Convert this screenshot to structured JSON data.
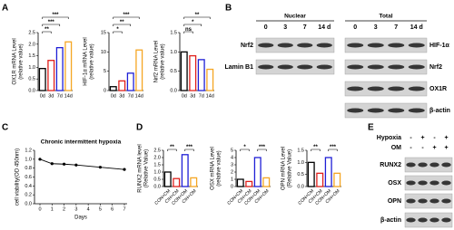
{
  "panels": [
    "A",
    "B",
    "C",
    "D",
    "E"
  ],
  "chart_data": [
    {
      "type": "bar",
      "ylabel": [
        "OX1R mRNA Level",
        "(relative value)"
      ],
      "categories": [
        "0d",
        "3d",
        "7d",
        "14d"
      ],
      "values": [
        0.95,
        1.3,
        1.85,
        2.1
      ],
      "colors": [
        "#000000",
        "#e0201b",
        "#1f1fd6",
        "#f5a623"
      ],
      "fill": "#ffffff",
      "ylim": [
        0,
        2.5
      ],
      "yticks": [
        {
          "value": 0,
          "label": "0.0"
        },
        {
          "value": 0.5,
          "label": "0.5"
        },
        {
          "value": 1,
          "label": "1.0"
        },
        {
          "value": 1.5,
          "label": "1.5"
        },
        {
          "value": 2,
          "label": "2.0"
        },
        {
          "value": 2.5,
          "label": "2.5"
        }
      ],
      "significance": [
        {
          "between": [
            0,
            1
          ],
          "label": "**"
        },
        {
          "between": [
            0,
            2
          ],
          "label": "***"
        },
        {
          "between": [
            0,
            3
          ],
          "label": "***"
        }
      ]
    },
    {
      "type": "bar",
      "ylabel": [
        "HIF-1α mRNA Level",
        "(relative value)"
      ],
      "categories": [
        "0d",
        "3d",
        "7d",
        "14d"
      ],
      "values": [
        1,
        2.5,
        4.5,
        10.5
      ],
      "colors": [
        "#000000",
        "#e0201b",
        "#1f1fd6",
        "#f5a623"
      ],
      "fill": "#ffffff",
      "ylim": [
        0,
        15
      ],
      "yticks": [
        0,
        5,
        10,
        15
      ],
      "significance": [
        {
          "between": [
            0,
            1
          ],
          "label": "*"
        },
        {
          "between": [
            0,
            2
          ],
          "label": "**"
        },
        {
          "between": [
            0,
            3
          ],
          "label": "***"
        }
      ]
    },
    {
      "type": "bar",
      "ylabel": [
        "Nrf2 mRNA Level",
        "(relative value)"
      ],
      "categories": [
        "0d",
        "3d",
        "7d",
        "14d"
      ],
      "values": [
        1.0,
        0.9,
        0.8,
        0.55
      ],
      "colors": [
        "#000000",
        "#e0201b",
        "#1f1fd6",
        "#f5a623"
      ],
      "fill": "#ffffff",
      "ylim": [
        0,
        1.5
      ],
      "yticks": [
        {
          "value": 0,
          "label": "0.0"
        },
        {
          "value": 0.5,
          "label": "0.5"
        },
        {
          "value": 1,
          "label": "1.0"
        },
        {
          "value": 1.5,
          "label": "1.5"
        }
      ],
      "significance": [
        {
          "between": [
            0,
            1
          ],
          "label": "ns"
        },
        {
          "between": [
            0,
            2
          ],
          "label": "*"
        },
        {
          "between": [
            0,
            3
          ],
          "label": "**"
        }
      ]
    },
    {
      "type": "line",
      "title": "Chronic intermittent hypoxia",
      "ylabel": [
        "cell viability(OD 450nm)"
      ],
      "xlabel": "Days",
      "x": [
        0,
        1,
        2,
        3,
        5,
        7
      ],
      "values": [
        1.0,
        0.9,
        0.89,
        0.87,
        0.82,
        0.77
      ],
      "color": "#000000",
      "xlim": [
        0,
        7
      ],
      "xticks": [
        0,
        1,
        2,
        3,
        4,
        5,
        6,
        7
      ],
      "ylim": [
        0,
        1.2
      ],
      "yticks": [
        {
          "value": 0,
          "label": "0.0"
        },
        {
          "value": 0.2,
          "label": "0.2"
        },
        {
          "value": 0.4,
          "label": "0.4"
        },
        {
          "value": 0.6,
          "label": "0.6"
        },
        {
          "value": 0.8,
          "label": "0.8"
        },
        {
          "value": 1,
          "label": "1.0"
        },
        {
          "value": 1.2,
          "label": "1.2"
        }
      ]
    },
    {
      "type": "bar",
      "ylabel": [
        "RUNX2 mRNA level",
        "(Relative Value)"
      ],
      "categories": [
        "CON+CM",
        "CIH+CM",
        "CON+OM",
        "CIH+OM"
      ],
      "values": [
        1.0,
        0.55,
        2.2,
        0.6
      ],
      "colors": [
        "#000000",
        "#e0201b",
        "#1f1fd6",
        "#f5a623"
      ],
      "fill": "#ffffff",
      "ylim": [
        0,
        2.5
      ],
      "yticks": [
        {
          "value": 0,
          "label": "0.0"
        },
        {
          "value": 0.5,
          "label": "0.5"
        },
        {
          "value": 1,
          "label": "1.0"
        },
        {
          "value": 1.5,
          "label": "1.5"
        },
        {
          "value": 2,
          "label": "2.0"
        },
        {
          "value": 2.5,
          "label": "2.5"
        }
      ],
      "significance": [
        {
          "between": [
            0,
            1
          ],
          "label": "**"
        },
        {
          "between": [
            2,
            3
          ],
          "label": "***"
        }
      ]
    },
    {
      "type": "bar",
      "ylabel": [
        "OSX mRNA Level",
        "(relative value)"
      ],
      "categories": [
        "CON+CM",
        "CIH+CM",
        "CON+OM",
        "CIH+OM"
      ],
      "values": [
        1.0,
        0.7,
        4.0,
        1.2
      ],
      "colors": [
        "#000000",
        "#e0201b",
        "#1f1fd6",
        "#f5a623"
      ],
      "fill": "#ffffff",
      "ylim": [
        0,
        5
      ],
      "yticks": [
        0,
        1,
        2,
        3,
        4,
        5
      ],
      "significance": [
        {
          "between": [
            0,
            1
          ],
          "label": "*"
        },
        {
          "between": [
            2,
            3
          ],
          "label": "***"
        }
      ]
    },
    {
      "type": "bar",
      "ylabel": [
        "OPN mRNA Level",
        "(Relative Value)"
      ],
      "categories": [
        "CON+CM",
        "CIH+CM",
        "CON+OM",
        "CIH+OM"
      ],
      "values": [
        1.0,
        0.55,
        1.2,
        0.55
      ],
      "colors": [
        "#000000",
        "#e0201b",
        "#1f1fd6",
        "#f5a623"
      ],
      "fill": "#ffffff",
      "ylim": [
        0,
        1.5
      ],
      "yticks": [
        {
          "value": 0,
          "label": "0.0"
        },
        {
          "value": 0.5,
          "label": "0.5"
        },
        {
          "value": 1,
          "label": "1.0"
        },
        {
          "value": 1.5,
          "label": "1.5"
        }
      ],
      "significance": [
        {
          "between": [
            0,
            1
          ],
          "label": "**"
        },
        {
          "between": [
            2,
            3
          ],
          "label": "***"
        }
      ]
    }
  ],
  "blots": [
    {
      "title": "Nuclear",
      "columns": [
        "0",
        "3",
        "7",
        "14 d"
      ],
      "rows": [
        "Nrf2",
        "Lamin B1"
      ]
    },
    {
      "title": "Total",
      "columns": [
        "0",
        "3",
        "7",
        "14 d"
      ],
      "rows": [
        "HIF-1α",
        "Nrf2",
        "OX1R",
        "β-actin"
      ]
    },
    {
      "conditions": [
        {
          "name": "Hypoxia",
          "values": [
            "-",
            "+",
            "-",
            "+"
          ]
        },
        {
          "name": "OM",
          "values": [
            "-",
            "-",
            "+",
            "+"
          ]
        }
      ],
      "rows": [
        "RUNX2",
        "OSX",
        "OPN",
        "β-actin"
      ]
    }
  ]
}
